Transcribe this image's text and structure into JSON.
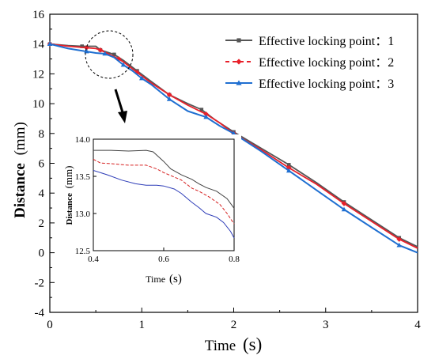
{
  "chart_data": [
    {
      "type": "line",
      "xlabel": "Time",
      "xlabel_unit": "(s)",
      "ylabel": "Distance",
      "ylabel_unit": "(mm)",
      "xlim": [
        0,
        4
      ],
      "ylim": [
        -4,
        16
      ],
      "xticks": [
        "0",
        "1",
        "2",
        "3",
        "4"
      ],
      "yticks": [
        "-4",
        "-2",
        "0",
        "2",
        "4",
        "6",
        "8",
        "10",
        "12",
        "14",
        "16"
      ],
      "grid": false,
      "legend_position": "top-right",
      "series": [
        {
          "name": "Effective locking point：1",
          "color": "#555555",
          "marker": "square",
          "x": [
            0,
            0.2,
            0.35,
            0.5,
            0.55,
            0.65,
            0.7,
            0.8,
            0.95,
            1.1,
            1.3,
            1.5,
            1.65,
            1.8,
            2.0,
            2.3,
            2.6,
            2.9,
            3.2,
            3.5,
            3.8,
            4.0
          ],
          "y": [
            14.0,
            13.9,
            13.85,
            13.85,
            13.6,
            13.4,
            13.3,
            12.9,
            12.2,
            11.5,
            10.6,
            10.0,
            9.6,
            8.9,
            8.1,
            7.0,
            5.9,
            4.7,
            3.4,
            2.2,
            1.0,
            0.4
          ]
        },
        {
          "name": "Effective locking point：2",
          "color": "#e8202a",
          "marker": "diamond",
          "x": [
            0,
            0.2,
            0.4,
            0.5,
            0.55,
            0.65,
            0.75,
            0.8,
            0.95,
            1.1,
            1.3,
            1.5,
            1.7,
            1.85,
            2.0,
            2.3,
            2.6,
            2.9,
            3.2,
            3.5,
            3.8,
            4.0
          ],
          "y": [
            14.0,
            13.85,
            13.75,
            13.7,
            13.6,
            13.3,
            13.0,
            12.8,
            12.1,
            11.4,
            10.6,
            9.9,
            9.3,
            8.7,
            8.0,
            6.9,
            5.7,
            4.6,
            3.3,
            2.1,
            0.9,
            0.3
          ]
        },
        {
          "name": "Effective locking point：3",
          "color": "#1f6fd1",
          "marker": "triangle",
          "x": [
            0,
            0.2,
            0.4,
            0.5,
            0.6,
            0.7,
            0.8,
            0.9,
            1.0,
            1.1,
            1.3,
            1.5,
            1.7,
            1.85,
            2.0,
            2.3,
            2.6,
            2.9,
            3.2,
            3.5,
            3.8,
            4.0
          ],
          "y": [
            14.0,
            13.7,
            13.5,
            13.4,
            13.35,
            13.1,
            12.6,
            12.2,
            11.7,
            11.3,
            10.3,
            9.5,
            9.1,
            8.5,
            8.0,
            6.8,
            5.5,
            4.2,
            2.9,
            1.7,
            0.5,
            0.0
          ]
        }
      ]
    },
    {
      "type": "line",
      "xlabel": "Time",
      "xlabel_unit": "(s)",
      "ylabel": "Distance",
      "ylabel_unit": "(mm)",
      "xlim": [
        0.4,
        0.8
      ],
      "ylim": [
        12.5,
        14.0
      ],
      "xticks": [
        "0.4",
        "0.6",
        "0.8"
      ],
      "yticks": [
        "12.5",
        "13.0",
        "13.5",
        "14.0"
      ],
      "grid": false,
      "series": [
        {
          "color": "#444444",
          "dash": "solid",
          "x": [
            0.4,
            0.45,
            0.5,
            0.55,
            0.57,
            0.6,
            0.62,
            0.65,
            0.68,
            0.7,
            0.72,
            0.75,
            0.78,
            0.8
          ],
          "y": [
            13.85,
            13.85,
            13.84,
            13.85,
            13.83,
            13.7,
            13.6,
            13.52,
            13.46,
            13.4,
            13.35,
            13.3,
            13.2,
            13.07
          ]
        },
        {
          "color": "#d62020",
          "dash": "dashed",
          "x": [
            0.4,
            0.42,
            0.45,
            0.5,
            0.55,
            0.58,
            0.6,
            0.63,
            0.65,
            0.68,
            0.7,
            0.73,
            0.76,
            0.78,
            0.8
          ],
          "y": [
            13.73,
            13.68,
            13.67,
            13.65,
            13.65,
            13.6,
            13.55,
            13.49,
            13.45,
            13.34,
            13.3,
            13.22,
            13.12,
            13.0,
            12.86
          ]
        },
        {
          "color": "#2e3db8",
          "dash": "solid",
          "x": [
            0.4,
            0.44,
            0.48,
            0.52,
            0.55,
            0.58,
            0.6,
            0.63,
            0.65,
            0.68,
            0.7,
            0.72,
            0.75,
            0.77,
            0.79,
            0.8
          ],
          "y": [
            13.58,
            13.52,
            13.45,
            13.4,
            13.38,
            13.38,
            13.37,
            13.33,
            13.27,
            13.15,
            13.08,
            13.0,
            12.95,
            12.88,
            12.76,
            12.67
          ]
        }
      ]
    }
  ]
}
